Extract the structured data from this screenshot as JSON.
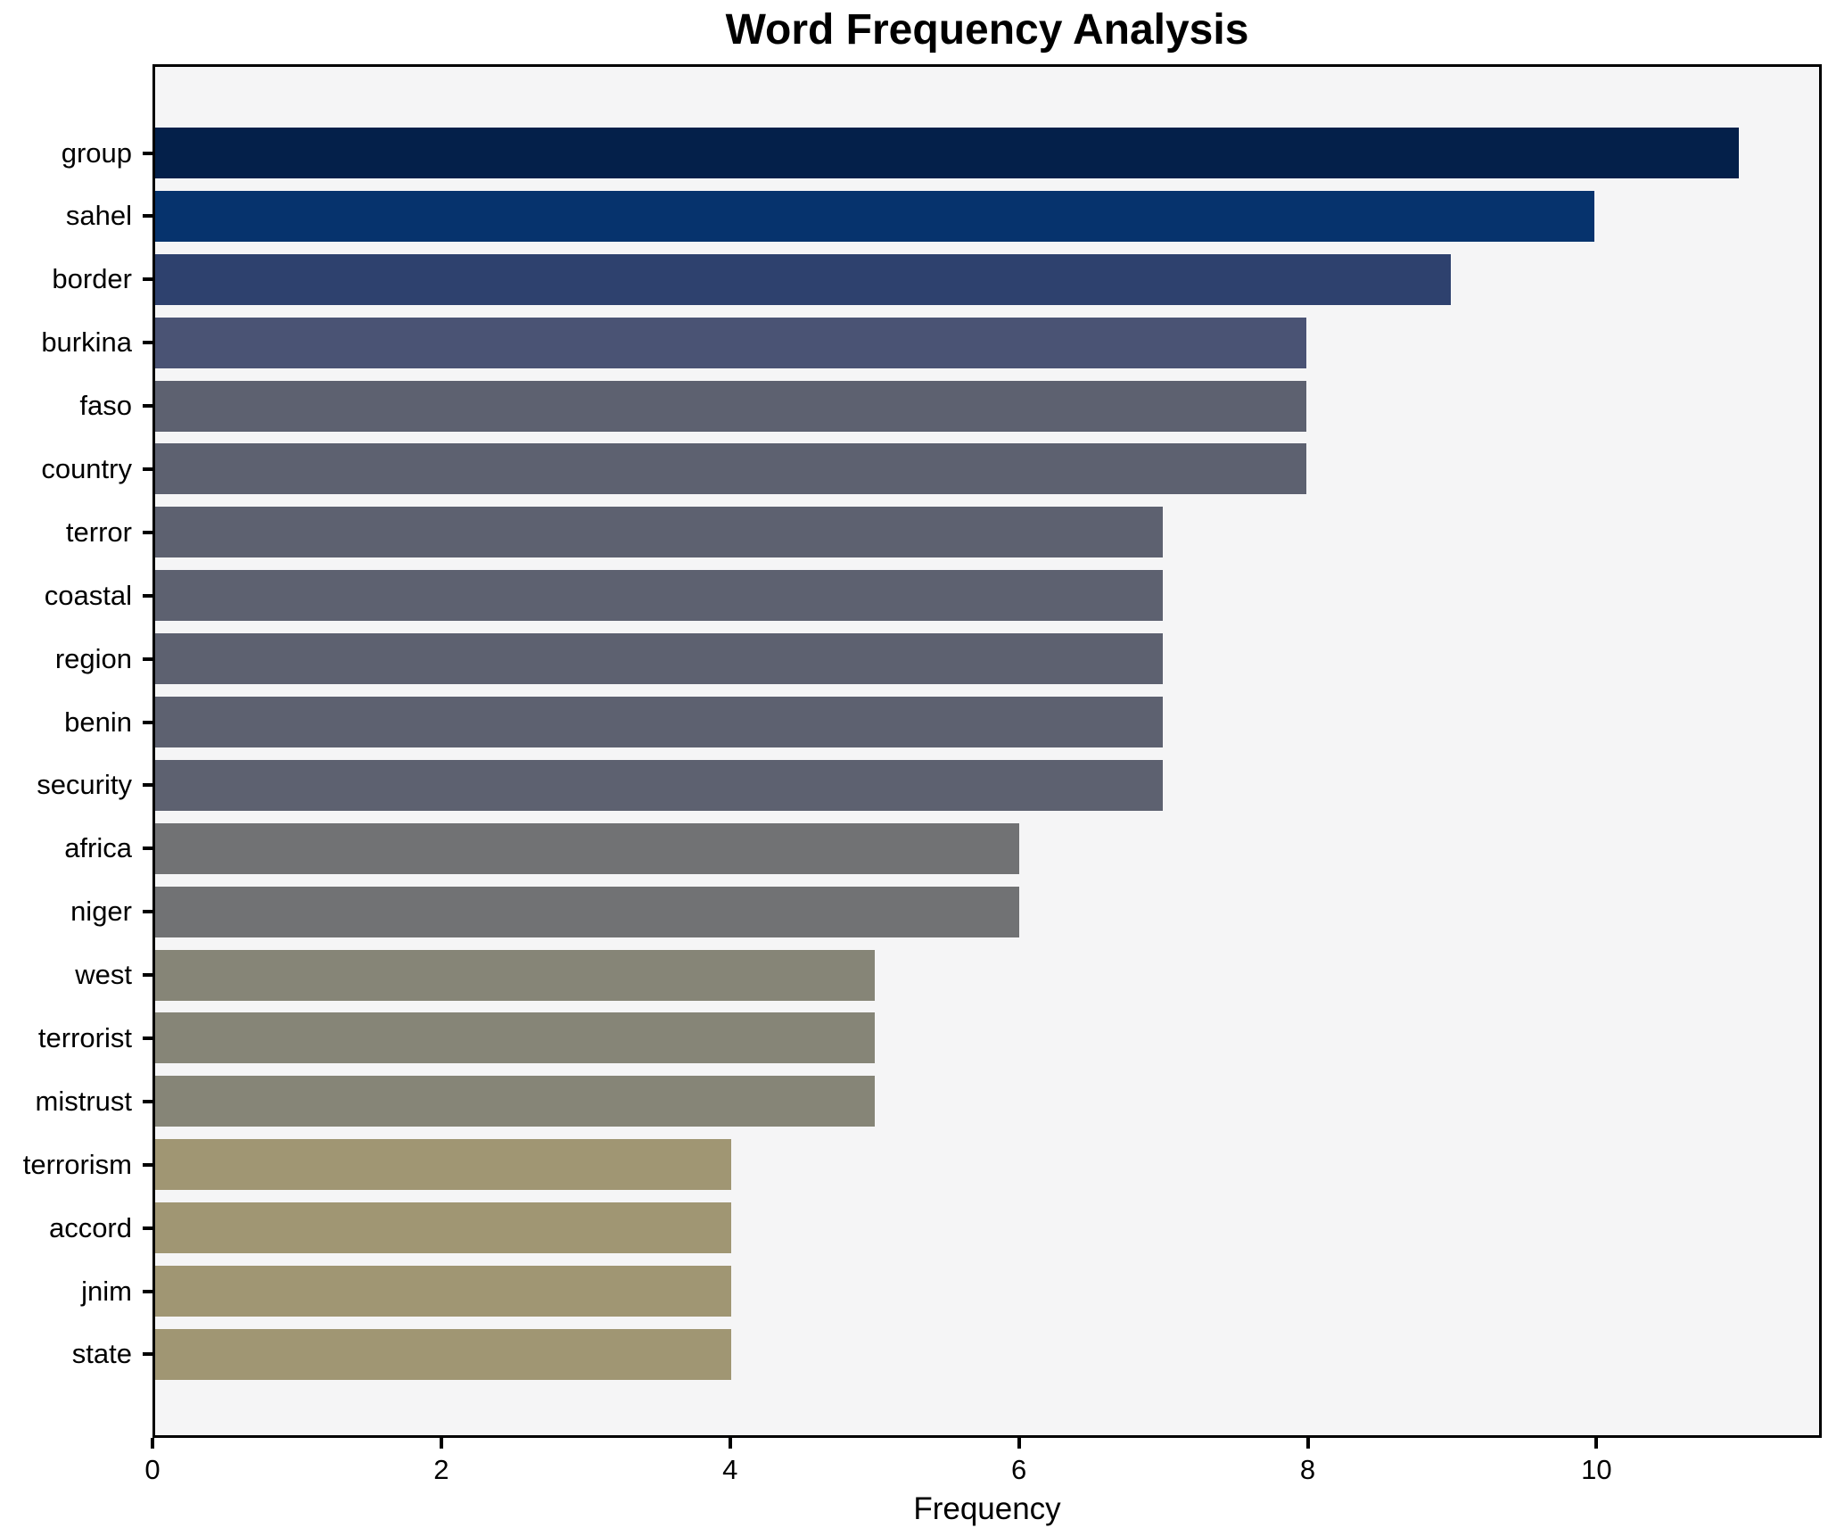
{
  "chart_data": {
    "type": "bar",
    "orientation": "horizontal",
    "title": "Word Frequency Analysis",
    "xlabel": "Frequency",
    "ylabel": "",
    "grid": false,
    "legend": null,
    "xlim": [
      0,
      11.56
    ],
    "x_ticks": [
      0,
      2,
      4,
      6,
      8,
      10
    ],
    "categories": [
      "group",
      "sahel",
      "border",
      "burkina",
      "faso",
      "country",
      "terror",
      "coastal",
      "region",
      "benin",
      "security",
      "africa",
      "niger",
      "west",
      "terrorist",
      "mistrust",
      "terrorism",
      "accord",
      "jnim",
      "state"
    ],
    "values": [
      11,
      10,
      9,
      8,
      8,
      8,
      7,
      7,
      7,
      7,
      7,
      6,
      6,
      5,
      5,
      5,
      4,
      4,
      4,
      4
    ],
    "bar_colors": [
      "#04204a",
      "#06336d",
      "#2e416e",
      "#4a5374",
      "#5d6170",
      "#5d6170",
      "#5d6170",
      "#5d6170",
      "#5d6170",
      "#5d6170",
      "#5d6170",
      "#717274",
      "#717274",
      "#868577",
      "#868577",
      "#868577",
      "#a09673",
      "#a09673",
      "#a09673",
      "#a09673"
    ],
    "colors": {
      "figure_background": "#ffffff",
      "plot_background": "#f5f5f6",
      "spine": "#000000",
      "text": "#000000"
    }
  }
}
